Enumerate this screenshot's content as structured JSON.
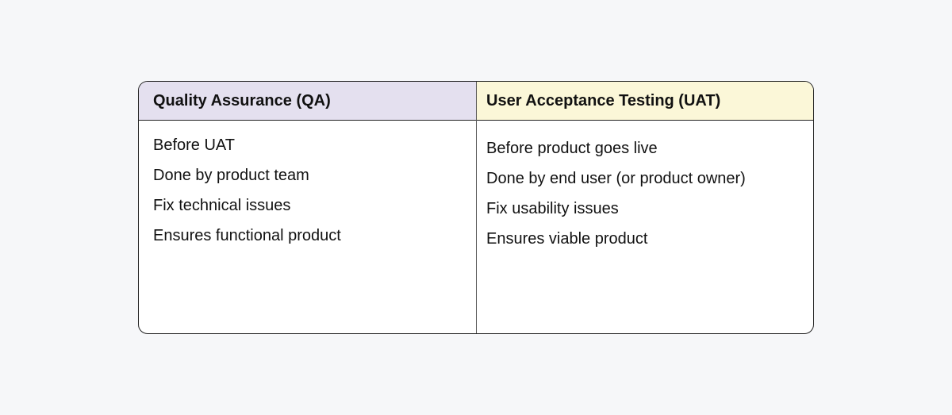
{
  "columns": [
    {
      "header": "Quality Assurance (QA)",
      "header_color": "#e4e0ef",
      "items": [
        "Before UAT",
        "Done by product team",
        "Fix technical issues",
        "Ensures functional product"
      ]
    },
    {
      "header": "User Acceptance Testing (UAT)",
      "header_color": "#fbf7d8",
      "items": [
        "Before product goes live",
        "Done by end user (or product owner)",
        "Fix usability issues",
        "Ensures viable product"
      ]
    }
  ]
}
